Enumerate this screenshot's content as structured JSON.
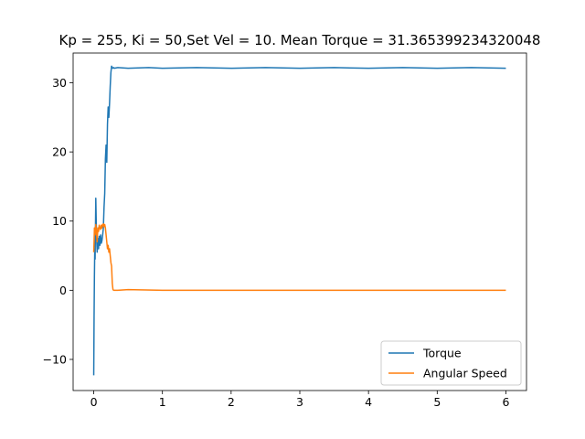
{
  "chart_data": {
    "type": "line",
    "title": "Kp = 255, Ki = 50,Set Vel = 10. Mean Torque = 31.365399234320048",
    "xlabel": "",
    "ylabel": "",
    "xlim": [
      -0.3,
      6.3
    ],
    "ylim": [
      -14.5,
      34.3
    ],
    "xticks": [
      0,
      1,
      2,
      3,
      4,
      5,
      6
    ],
    "yticks": [
      -10,
      0,
      10,
      20,
      30
    ],
    "grid": false,
    "legend_position": "lower-right",
    "series": [
      {
        "name": "Torque",
        "color": "#1f77b4",
        "x": [
          0.0,
          0.005,
          0.01,
          0.015,
          0.02,
          0.03,
          0.04,
          0.05,
          0.06,
          0.07,
          0.08,
          0.09,
          0.1,
          0.11,
          0.12,
          0.13,
          0.14,
          0.15,
          0.16,
          0.17,
          0.18,
          0.19,
          0.2,
          0.21,
          0.22,
          0.23,
          0.24,
          0.25,
          0.26,
          0.27,
          0.28,
          0.29,
          0.3,
          0.35,
          0.5,
          0.8,
          1.0,
          1.5,
          2.0,
          2.5,
          3.0,
          3.5,
          4.0,
          4.5,
          5.0,
          5.5,
          6.0
        ],
        "y": [
          -12.3,
          -4.0,
          2.0,
          6.0,
          4.5,
          13.3,
          8.0,
          5.5,
          7.5,
          6.0,
          7.8,
          6.5,
          8.0,
          6.8,
          7.2,
          8.0,
          9.0,
          12.0,
          14.0,
          19.0,
          21.0,
          18.5,
          24.0,
          26.5,
          25.0,
          27.0,
          29.5,
          31.5,
          32.4,
          32.2,
          32.1,
          32.2,
          32.1,
          32.2,
          32.1,
          32.2,
          32.1,
          32.2,
          32.1,
          32.2,
          32.1,
          32.2,
          32.1,
          32.2,
          32.1,
          32.2,
          32.1
        ]
      },
      {
        "name": "Angular Speed",
        "color": "#ff7f0e",
        "x": [
          0.0,
          0.005,
          0.01,
          0.02,
          0.03,
          0.04,
          0.05,
          0.06,
          0.07,
          0.08,
          0.09,
          0.1,
          0.11,
          0.12,
          0.13,
          0.14,
          0.15,
          0.16,
          0.17,
          0.18,
          0.19,
          0.2,
          0.21,
          0.22,
          0.23,
          0.24,
          0.25,
          0.26,
          0.27,
          0.28,
          0.29,
          0.3,
          0.35,
          0.5,
          1.0,
          1.5,
          2.0,
          2.5,
          3.0,
          3.5,
          4.0,
          4.5,
          5.0,
          5.5,
          6.0
        ],
        "y": [
          5.5,
          7.0,
          9.0,
          8.0,
          9.5,
          8.5,
          7.0,
          9.0,
          8.5,
          9.4,
          9.0,
          8.8,
          9.4,
          9.0,
          9.5,
          9.6,
          9.2,
          9.5,
          9.0,
          8.0,
          7.0,
          6.0,
          6.5,
          5.5,
          6.0,
          5.0,
          4.0,
          3.5,
          1.0,
          0.1,
          0.0,
          0.0,
          0.0,
          0.1,
          0.0,
          0.0,
          0.0,
          0.0,
          0.0,
          0.0,
          0.0,
          0.0,
          0.0,
          0.0,
          0.0
        ]
      }
    ]
  }
}
